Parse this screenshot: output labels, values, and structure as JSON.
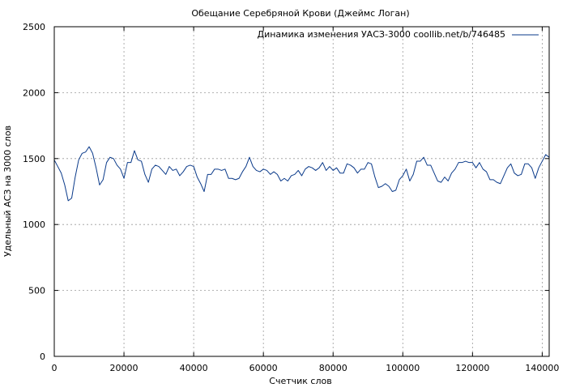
{
  "chart_data": {
    "type": "line",
    "title": "Обещание Серебряной Крови (Джеймс Логан)",
    "xlabel": "Счетчик слов",
    "ylabel": "Удельный АСЗ на 3000 слов",
    "xlim": [
      0,
      142000
    ],
    "ylim": [
      0,
      2500
    ],
    "xticks": [
      0,
      20000,
      40000,
      60000,
      80000,
      100000,
      120000,
      140000
    ],
    "yticks": [
      0,
      500,
      1000,
      1500,
      2000,
      2500
    ],
    "grid": true,
    "legend_position": "top-right",
    "series": [
      {
        "name": "Динамика изменения УАСЗ-3000 coollib.net/b/746485",
        "color": "#0a3a8a",
        "x": [
          0,
          1000,
          2000,
          3000,
          4000,
          5000,
          6000,
          7000,
          8000,
          9000,
          10000,
          11000,
          12000,
          13000,
          14000,
          15000,
          16000,
          17000,
          18000,
          19000,
          20000,
          21000,
          22000,
          23000,
          24000,
          25000,
          26000,
          27000,
          28000,
          29000,
          30000,
          31000,
          32000,
          33000,
          34000,
          35000,
          36000,
          37000,
          38000,
          39000,
          40000,
          41000,
          42000,
          43000,
          44000,
          45000,
          46000,
          47000,
          48000,
          49000,
          50000,
          51000,
          52000,
          53000,
          54000,
          55000,
          56000,
          57000,
          58000,
          59000,
          60000,
          61000,
          62000,
          63000,
          64000,
          65000,
          66000,
          67000,
          68000,
          69000,
          70000,
          71000,
          72000,
          73000,
          74000,
          75000,
          76000,
          77000,
          78000,
          79000,
          80000,
          81000,
          82000,
          83000,
          84000,
          85000,
          86000,
          87000,
          88000,
          89000,
          90000,
          91000,
          92000,
          93000,
          94000,
          95000,
          96000,
          97000,
          98000,
          99000,
          100000,
          101000,
          102000,
          103000,
          104000,
          105000,
          106000,
          107000,
          108000,
          109000,
          110000,
          111000,
          112000,
          113000,
          114000,
          115000,
          116000,
          117000,
          118000,
          119000,
          120000,
          121000,
          122000,
          123000,
          124000,
          125000,
          126000,
          127000,
          128000,
          129000,
          130000,
          131000,
          132000,
          133000,
          134000,
          135000,
          136000,
          137000,
          138000,
          139000,
          140000,
          141000,
          142000
        ],
        "values": [
          1490,
          1440,
          1390,
          1300,
          1180,
          1200,
          1360,
          1490,
          1540,
          1550,
          1590,
          1540,
          1430,
          1300,
          1340,
          1470,
          1510,
          1500,
          1450,
          1420,
          1350,
          1470,
          1470,
          1560,
          1490,
          1480,
          1380,
          1320,
          1420,
          1450,
          1440,
          1410,
          1380,
          1440,
          1410,
          1420,
          1370,
          1400,
          1440,
          1450,
          1440,
          1360,
          1310,
          1250,
          1380,
          1380,
          1420,
          1420,
          1410,
          1420,
          1350,
          1350,
          1340,
          1350,
          1400,
          1440,
          1510,
          1440,
          1410,
          1400,
          1420,
          1410,
          1380,
          1400,
          1380,
          1330,
          1350,
          1330,
          1370,
          1380,
          1410,
          1370,
          1420,
          1440,
          1430,
          1410,
          1430,
          1470,
          1410,
          1440,
          1410,
          1430,
          1390,
          1390,
          1460,
          1450,
          1430,
          1390,
          1420,
          1420,
          1470,
          1460,
          1360,
          1280,
          1290,
          1310,
          1290,
          1250,
          1260,
          1340,
          1370,
          1420,
          1330,
          1380,
          1480,
          1480,
          1510,
          1450,
          1450,
          1390,
          1330,
          1320,
          1360,
          1330,
          1390,
          1420,
          1470,
          1470,
          1480,
          1470,
          1470,
          1430,
          1470,
          1420,
          1400,
          1340,
          1340,
          1320,
          1310,
          1370,
          1430,
          1460,
          1390,
          1370,
          1380,
          1460,
          1460,
          1430,
          1350,
          1430,
          1480,
          1530,
          1510
        ]
      }
    ]
  }
}
